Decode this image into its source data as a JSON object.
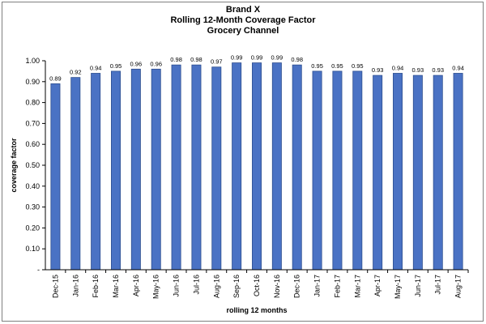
{
  "chart_data": {
    "type": "bar",
    "title": "Brand X",
    "subtitle_1": "Rolling 12-Month Coverage Factor",
    "subtitle_2": "Grocery Channel",
    "xlabel": "rolling 12 months",
    "ylabel": "coverage factor",
    "ylim": [
      0,
      1.0
    ],
    "yticks": [
      {
        "value": 0,
        "label": "-"
      },
      {
        "value": 0.1,
        "label": "0.10"
      },
      {
        "value": 0.2,
        "label": "0.20"
      },
      {
        "value": 0.3,
        "label": "0.30"
      },
      {
        "value": 0.4,
        "label": "0.40"
      },
      {
        "value": 0.5,
        "label": "0.50"
      },
      {
        "value": 0.6,
        "label": "0.60"
      },
      {
        "value": 0.7,
        "label": "0.70"
      },
      {
        "value": 0.8,
        "label": "0.80"
      },
      {
        "value": 0.9,
        "label": "0.90"
      },
      {
        "value": 1.0,
        "label": "1.00"
      }
    ],
    "grid": false,
    "legend": "none",
    "bar_color": "#4a72c4",
    "bar_edge_color": "#2e4f8f",
    "categories": [
      "Dec-15",
      "Jan-16",
      "Feb-16",
      "Mar-16",
      "Apr-16",
      "May-16",
      "Jun-16",
      "Jul-16",
      "Aug-16",
      "Sep-16",
      "Oct-16",
      "Nov-16",
      "Dec-16",
      "Jan-17",
      "Feb-17",
      "Mar-17",
      "Apr-17",
      "May-17",
      "Jun-17",
      "Jul-17",
      "Aug-17"
    ],
    "values": [
      0.89,
      0.92,
      0.94,
      0.95,
      0.96,
      0.96,
      0.98,
      0.98,
      0.97,
      0.99,
      0.99,
      0.99,
      0.98,
      0.95,
      0.95,
      0.95,
      0.93,
      0.94,
      0.93,
      0.93,
      0.94
    ],
    "value_labels": [
      "0.89",
      "0.92",
      "0.94",
      "0.95",
      "0.96",
      "0.96",
      "0.98",
      "0.98",
      "0.97",
      "0.99",
      "0.99",
      "0.99",
      "0.98",
      "0.95",
      "0.95",
      "0.95",
      "0.93",
      "0.94",
      "0.93",
      "0.93",
      "0.94"
    ]
  }
}
